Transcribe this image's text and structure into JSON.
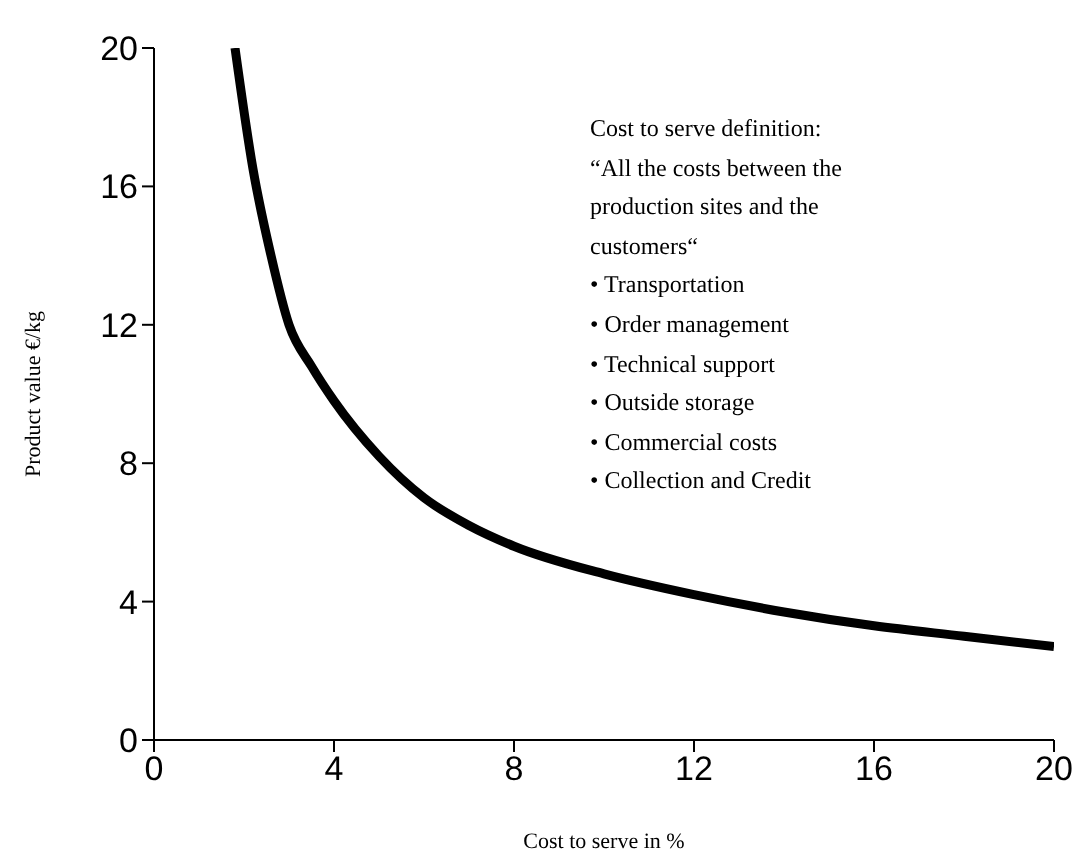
{
  "chart_data": {
    "type": "line",
    "xlabel": "Cost to serve in %",
    "ylabel": "Product value €/kg",
    "x": [
      1.8,
      2.2,
      2.6,
      3,
      3.5,
      4,
      5,
      6,
      7,
      8,
      10,
      12,
      14,
      16,
      18,
      20
    ],
    "series": [
      {
        "color": "#000000",
        "values": [
          20,
          16.5,
          14,
          12,
          10.8,
          9.8,
          8.2,
          7,
          6.2,
          5.6,
          4.8,
          4.2,
          3.7,
          3.3,
          3,
          2.7
        ]
      }
    ],
    "xlim": [
      0,
      20
    ],
    "xticks": [
      0,
      4,
      8,
      12,
      16,
      20
    ],
    "ylim": [
      0,
      20
    ],
    "yticks": [
      0,
      4,
      8,
      12,
      16,
      20
    ],
    "grid": false,
    "legend": false,
    "marker": "none",
    "line_style": "solid",
    "annotations": [
      "Cost to serve definition:",
      "“All the costs between the",
      "production sites and the",
      "customers“",
      "• Transportation",
      "• Order management",
      "• Technical support",
      "• Outside storage",
      "• Commercial costs",
      "• Collection and Credit"
    ]
  }
}
